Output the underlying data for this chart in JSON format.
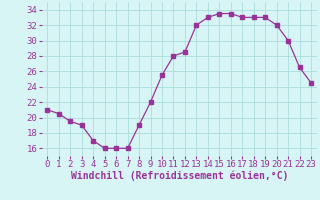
{
  "x": [
    0,
    1,
    2,
    3,
    4,
    5,
    6,
    7,
    8,
    9,
    10,
    11,
    12,
    13,
    14,
    15,
    16,
    17,
    18,
    19,
    20,
    21,
    22,
    23
  ],
  "y": [
    21,
    20.5,
    19.5,
    19,
    17,
    16,
    16,
    16,
    19,
    22,
    25.5,
    28,
    28.5,
    32,
    33,
    33.5,
    33.5,
    33,
    33,
    33,
    32,
    30,
    26.5,
    24.5
  ],
  "line_color": "#993399",
  "marker": "s",
  "marker_size": 2.5,
  "bg_color": "#d8f5f5",
  "grid_color": "#aadddd",
  "xlabel": "Windchill (Refroidissement éolien,°C)",
  "xlabel_fontsize": 7,
  "tick_fontsize": 6.5,
  "ylim": [
    15,
    35
  ],
  "xlim": [
    -0.5,
    23.5
  ],
  "yticks": [
    16,
    18,
    20,
    22,
    24,
    26,
    28,
    30,
    32,
    34
  ],
  "xticks": [
    0,
    1,
    2,
    3,
    4,
    5,
    6,
    7,
    8,
    9,
    10,
    11,
    12,
    13,
    14,
    15,
    16,
    17,
    18,
    19,
    20,
    21,
    22,
    23
  ]
}
